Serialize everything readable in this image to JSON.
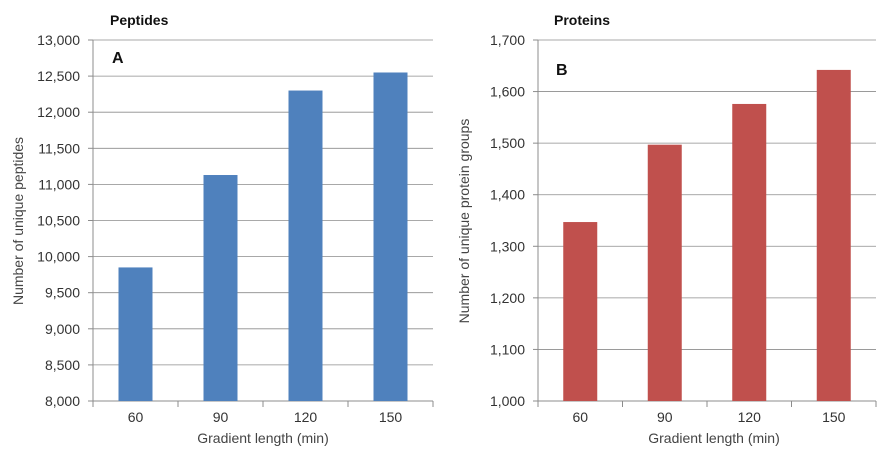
{
  "chart_data": [
    {
      "type": "bar",
      "title": "Peptides",
      "panel_label": "A",
      "categories": [
        "60",
        "90",
        "120",
        "150"
      ],
      "values": [
        9850,
        11130,
        12300,
        12550
      ],
      "xlabel": "Gradient length (min)",
      "ylabel": "Number of unique peptides",
      "ylim": [
        8000,
        13000
      ],
      "yticks": [
        "8,000",
        "8,500",
        "9,000",
        "9,500",
        "10,000",
        "10,500",
        "11,000",
        "11,500",
        "12,000",
        "12,500",
        "13,000"
      ],
      "grid": true,
      "color": "#4f81bd"
    },
    {
      "type": "bar",
      "title": "Proteins",
      "panel_label": "B",
      "categories": [
        "60",
        "90",
        "120",
        "150"
      ],
      "values": [
        1347,
        1497,
        1576,
        1642
      ],
      "xlabel": "Gradient length (min)",
      "ylabel": "Number of unique protein groups",
      "ylim": [
        1000,
        1700
      ],
      "yticks": [
        "1,000",
        "1,100",
        "1,200",
        "1,300",
        "1,400",
        "1,500",
        "1,600",
        "1,700"
      ],
      "grid": true,
      "color": "#c0504d"
    }
  ]
}
